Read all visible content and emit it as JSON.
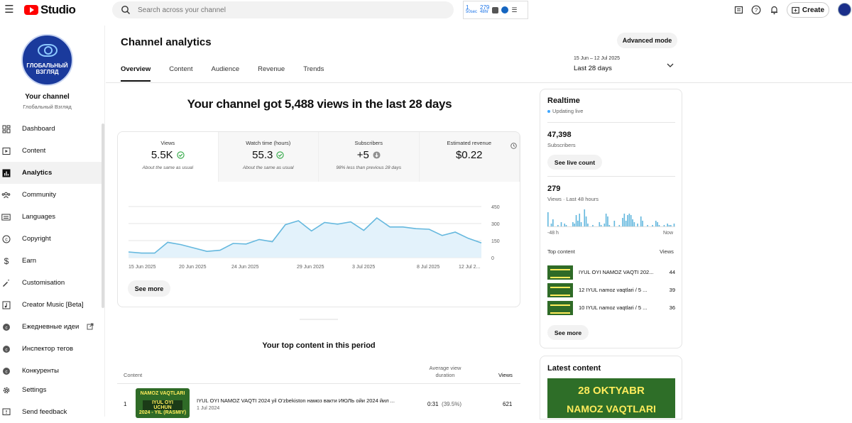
{
  "app": {
    "logo_text": "Studio"
  },
  "search": {
    "placeholder": "Search across your channel"
  },
  "extension": {
    "top": "1",
    "top_sub": "50sec",
    "count": "279",
    "count_sub": "48hr"
  },
  "header_actions": {
    "create_label": "Create"
  },
  "channel": {
    "avatar_line1": "ГЛОБАЛЬНЫЙ",
    "avatar_line2": "ВЗГЛЯД",
    "your_channel": "Your channel",
    "name": "Глобальный Взгляд"
  },
  "sidebar": {
    "items": [
      {
        "label": "Dashboard",
        "icon": "dashboard-icon"
      },
      {
        "label": "Content",
        "icon": "content-icon"
      },
      {
        "label": "Analytics",
        "icon": "analytics-icon",
        "active": true
      },
      {
        "label": "Community",
        "icon": "community-icon"
      },
      {
        "label": "Languages",
        "icon": "subtitles-icon"
      },
      {
        "label": "Copyright",
        "icon": "copyright-icon"
      },
      {
        "label": "Earn",
        "icon": "dollar-icon"
      },
      {
        "label": "Customisation",
        "icon": "magic-wand-icon"
      },
      {
        "label": "Creator Music [Beta]",
        "icon": "music-icon"
      },
      {
        "label": "Ежедневные идеи",
        "icon": "extension-icon"
      },
      {
        "label": "Инспектор тегов",
        "icon": "extension-icon"
      },
      {
        "label": "Конкуренты",
        "icon": "extension-icon"
      },
      {
        "label": "Settings",
        "icon": "gear-icon"
      },
      {
        "label": "Send feedback",
        "icon": "feedback-icon"
      }
    ]
  },
  "page": {
    "title": "Channel analytics",
    "tabs": [
      "Overview",
      "Content",
      "Audience",
      "Revenue",
      "Trends"
    ],
    "advanced_mode": "Advanced mode",
    "date_range": "15 Jun – 12 Jul 2025",
    "date_label": "Last 28 days"
  },
  "overview": {
    "headline": "Your channel got 5,488 views in the last 28 days",
    "metrics": [
      {
        "label": "Views",
        "value": "5.5K",
        "note": "About the same as usual",
        "status": "check"
      },
      {
        "label": "Watch time (hours)",
        "value": "55.3",
        "note": "About the same as usual",
        "status": "check"
      },
      {
        "label": "Subscribers",
        "value": "+5",
        "note": "98% less than previous 28 days",
        "status": "down"
      },
      {
        "label": "Estimated revenue",
        "value": "$0.22",
        "note": "",
        "status": "clock"
      }
    ],
    "see_more": "See more"
  },
  "chart_data": {
    "type": "area",
    "title": "",
    "xlabel": "",
    "ylabel": "",
    "x_tick_labels": [
      "15 Jun 2025",
      "20 Jun 2025",
      "24 Jun 2025",
      "29 Jun 2025",
      "3 Jul 2025",
      "8 Jul 2025",
      "12 Jul 2..."
    ],
    "y_tick_labels": [
      "450",
      "300",
      "150",
      "0"
    ],
    "ylim": [
      0,
      450
    ],
    "series": [
      {
        "values": [
          50,
          40,
          40,
          135,
          115,
          85,
          55,
          65,
          125,
          120,
          160,
          140,
          290,
          325,
          235,
          310,
          295,
          315,
          240,
          350,
          270,
          270,
          255,
          250,
          195,
          225,
          170,
          130
        ]
      }
    ],
    "grid": true,
    "color": "#65b8de"
  },
  "top_content": {
    "title": "Your top content in this period",
    "headers": {
      "content": "Content",
      "avd": "Average view duration",
      "views": "Views"
    },
    "rows": [
      {
        "rank": "1",
        "thumb_line1": "NAMOZ VAQTLARI",
        "thumb_line2": "IYUL OYI UCHUN",
        "thumb_line3": "2024 - YIL (RASMIY)",
        "title": "IYUL OYI NAMOZ VAQTI 2024 yil O'zbekiston намоз вакти ИЮЛЬ ойи 2024 йил ...",
        "date": "1 Jul 2024",
        "avd": "0:31",
        "avd_pct": "(39.5%)",
        "views": "621"
      }
    ]
  },
  "realtime": {
    "title": "Realtime",
    "status": "Updating live",
    "subscribers_value": "47,398",
    "subscribers_label": "Subscribers",
    "see_live_count": "See live count",
    "views_value": "279",
    "views_label": "Views · Last 48 hours",
    "axis_left": "-48 h",
    "axis_right": "Now",
    "top_content_label": "Top content",
    "views_col_label": "Views",
    "top": [
      {
        "title": "IYUL OYI NAMOZ VAQTI 202...",
        "views": "44"
      },
      {
        "title": "12 IYUL namoz vaqtlari / 5 ...",
        "views": "39"
      },
      {
        "title": "10 IYUL namoz vaqtlari / 5 ...",
        "views": "36"
      }
    ],
    "see_more": "See more",
    "bars": [
      10,
      0,
      2,
      5,
      0,
      0,
      1,
      0,
      3,
      0,
      2,
      1,
      0,
      0,
      0,
      3,
      2,
      8,
      4,
      9,
      3,
      0,
      12,
      7,
      2,
      0,
      0,
      1,
      0,
      0,
      0,
      3,
      1,
      0,
      2,
      9,
      7,
      1,
      0,
      0,
      4,
      0,
      0,
      1,
      0,
      6,
      9,
      4,
      8,
      9,
      8,
      5,
      3,
      0,
      2,
      0,
      7,
      4,
      0,
      0,
      1,
      0,
      0,
      1,
      0,
      4,
      3,
      1,
      0,
      0,
      1,
      0,
      2,
      1,
      1,
      0,
      2
    ]
  },
  "latest": {
    "title": "Latest content",
    "thumb_line1": "28 OKTYABR",
    "thumb_line2": "NAMOZ VAQTLARI"
  }
}
